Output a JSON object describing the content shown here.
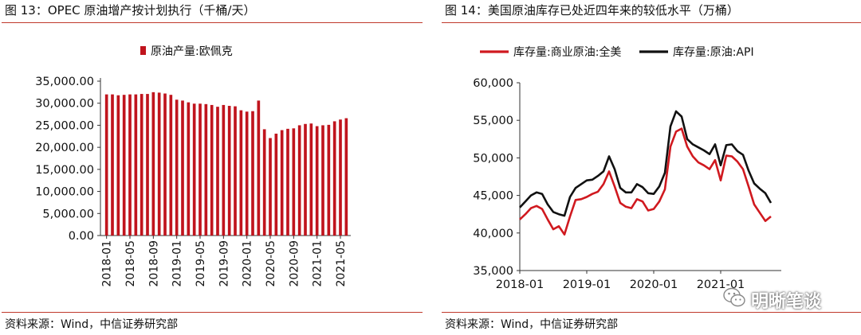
{
  "left_panel": {
    "title": "图 13：OPEC 原油增产按计划执行（千桶/天）",
    "source": "资料来源：Wind，中信证券研究部"
  },
  "right_panel": {
    "title": "图 14：美国原油库存已处近四年来的较低水平（万桶）",
    "source": "资料来源：Wind，中信证券研究部"
  },
  "watermark": {
    "text": "明晰笔谈",
    "icon": "wechat-icon"
  },
  "chart_data": [
    {
      "type": "bar",
      "title": "图 13：OPEC 原油增产按计划执行（千桶/天）",
      "series": [
        {
          "name": "原油产量:欧佩克",
          "color": "#c0141d",
          "values": [
            32000,
            32000,
            31800,
            31900,
            32000,
            32000,
            32100,
            32100,
            32500,
            32400,
            32200,
            31900,
            30800,
            30600,
            30200,
            29900,
            29900,
            29800,
            29600,
            29200,
            29600,
            29400,
            29300,
            28400,
            28100,
            28200,
            30600,
            24100,
            22100,
            23100,
            23900,
            24200,
            24300,
            25000,
            25300,
            25400,
            24800,
            25000,
            25100,
            25900,
            26300,
            26600
          ]
        }
      ],
      "x_tick_labels": [
        "2018-01",
        "2018-05",
        "2018-09",
        "2019-01",
        "2019-05",
        "2019-09",
        "2020-01",
        "2020-05",
        "2020-09",
        "2021-01",
        "2021-05"
      ],
      "y_tick_labels": [
        "0.00",
        "5,000.00",
        "10,000.00",
        "15,000.00",
        "20,000.00",
        "25,000.00",
        "30,000.00",
        "35,000.00"
      ],
      "ylim": [
        0,
        35000
      ],
      "legend_position": "top",
      "grid": false
    },
    {
      "type": "line",
      "title": "图 14：美国原油库存已处近四年来的较低水平（万桶）",
      "x_tick_labels": [
        "2018-01",
        "2019-01",
        "2020-01",
        "2021-01"
      ],
      "y_tick_labels": [
        "35,000",
        "40,000",
        "45,000",
        "50,000",
        "55,000",
        "60,000"
      ],
      "ylim": [
        35000,
        60000
      ],
      "legend_position": "top",
      "grid": false,
      "series": [
        {
          "name": "库存量:商业原油:全美",
          "color": "#d0191f",
          "points": [
            [
              "2018-01",
              41800
            ],
            [
              "2018-02",
              42500
            ],
            [
              "2018-03",
              43300
            ],
            [
              "2018-04",
              43600
            ],
            [
              "2018-05",
              43200
            ],
            [
              "2018-06",
              41800
            ],
            [
              "2018-07",
              40500
            ],
            [
              "2018-08",
              40900
            ],
            [
              "2018-09",
              39800
            ],
            [
              "2018-10",
              42200
            ],
            [
              "2018-11",
              44400
            ],
            [
              "2018-12",
              44500
            ],
            [
              "2019-01",
              44800
            ],
            [
              "2019-02",
              45200
            ],
            [
              "2019-03",
              45500
            ],
            [
              "2019-04",
              46500
            ],
            [
              "2019-05",
              48200
            ],
            [
              "2019-06",
              46200
            ],
            [
              "2019-07",
              44000
            ],
            [
              "2019-08",
              43500
            ],
            [
              "2019-09",
              43300
            ],
            [
              "2019-10",
              44500
            ],
            [
              "2019-11",
              44200
            ],
            [
              "2019-12",
              43000
            ],
            [
              "2020-01",
              43200
            ],
            [
              "2020-02",
              44200
            ],
            [
              "2020-03",
              45800
            ],
            [
              "2020-04",
              51500
            ],
            [
              "2020-05",
              53500
            ],
            [
              "2020-06",
              53900
            ],
            [
              "2020-07",
              51500
            ],
            [
              "2020-08",
              50200
            ],
            [
              "2020-09",
              49400
            ],
            [
              "2020-10",
              49000
            ],
            [
              "2020-11",
              48500
            ],
            [
              "2020-12",
              49700
            ],
            [
              "2021-01",
              47000
            ],
            [
              "2021-02",
              50300
            ],
            [
              "2021-03",
              50200
            ],
            [
              "2021-04",
              49500
            ],
            [
              "2021-05",
              48500
            ],
            [
              "2021-06",
              46200
            ],
            [
              "2021-07",
              43800
            ],
            [
              "2021-08",
              42700
            ],
            [
              "2021-09",
              41600
            ],
            [
              "2021-10",
              42200
            ]
          ]
        },
        {
          "name": "库存量:原油:API",
          "color": "#111111",
          "points": [
            [
              "2018-01",
              43400
            ],
            [
              "2018-02",
              44200
            ],
            [
              "2018-03",
              45000
            ],
            [
              "2018-04",
              45400
            ],
            [
              "2018-05",
              45200
            ],
            [
              "2018-06",
              43800
            ],
            [
              "2018-07",
              42800
            ],
            [
              "2018-08",
              42500
            ],
            [
              "2018-09",
              42300
            ],
            [
              "2018-10",
              44800
            ],
            [
              "2018-11",
              46000
            ],
            [
              "2018-12",
              46500
            ],
            [
              "2019-01",
              47000
            ],
            [
              "2019-02",
              47100
            ],
            [
              "2019-03",
              47600
            ],
            [
              "2019-04",
              48200
            ],
            [
              "2019-05",
              50200
            ],
            [
              "2019-06",
              48500
            ],
            [
              "2019-07",
              46000
            ],
            [
              "2019-08",
              45400
            ],
            [
              "2019-09",
              45400
            ],
            [
              "2019-10",
              46500
            ],
            [
              "2019-11",
              46100
            ],
            [
              "2019-12",
              45300
            ],
            [
              "2020-01",
              45200
            ],
            [
              "2020-02",
              46200
            ],
            [
              "2020-03",
              48000
            ],
            [
              "2020-04",
              54200
            ],
            [
              "2020-05",
              56200
            ],
            [
              "2020-06",
              55500
            ],
            [
              "2020-07",
              52500
            ],
            [
              "2020-08",
              51800
            ],
            [
              "2020-09",
              51400
            ],
            [
              "2020-10",
              51000
            ],
            [
              "2020-11",
              50500
            ],
            [
              "2020-12",
              51800
            ],
            [
              "2021-01",
              49000
            ],
            [
              "2021-02",
              51700
            ],
            [
              "2021-03",
              51800
            ],
            [
              "2021-04",
              50900
            ],
            [
              "2021-05",
              50400
            ],
            [
              "2021-06",
              48300
            ],
            [
              "2021-07",
              46600
            ],
            [
              "2021-08",
              45900
            ],
            [
              "2021-09",
              45300
            ],
            [
              "2021-10",
              44000
            ]
          ]
        }
      ]
    }
  ]
}
